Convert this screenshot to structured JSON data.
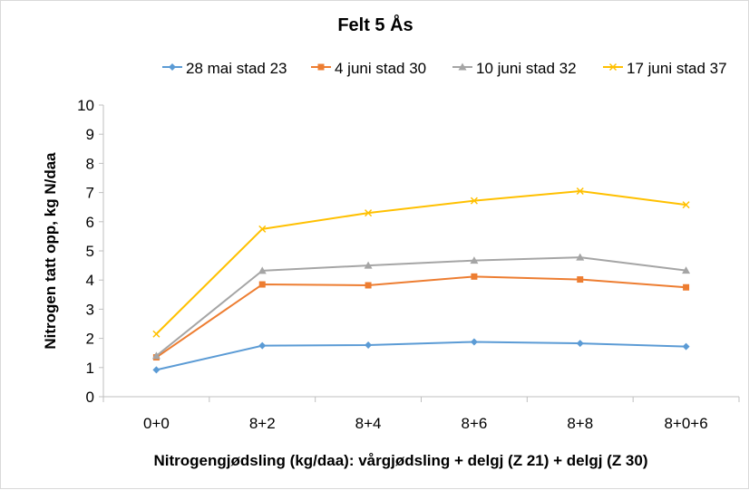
{
  "chart_data": {
    "type": "line",
    "title": "Felt 5 Ås",
    "xlabel": "Nitrogengjødsling (kg/daa): vårgjødsling + delgj (Z 21) + delgj (Z 30)",
    "ylabel": "Nitrogen tatt opp, kg N/daa",
    "categories": [
      "0+0",
      "8+2",
      "8+4",
      "8+6",
      "8+8",
      "8+0+6"
    ],
    "ylim": [
      0,
      10
    ],
    "yticks": [
      "0",
      "1",
      "2",
      "3",
      "4",
      "5",
      "6",
      "7",
      "8",
      "9",
      "10"
    ],
    "grid": false,
    "legend_position": "top",
    "series": [
      {
        "name": "28 mai stad 23",
        "color": "#5b9bd5",
        "marker": "diamond",
        "values": [
          0.92,
          1.75,
          1.77,
          1.88,
          1.83,
          1.72
        ]
      },
      {
        "name": "4 juni stad 30",
        "color": "#ed7d31",
        "marker": "square",
        "values": [
          1.35,
          3.85,
          3.82,
          4.12,
          4.02,
          3.75
        ]
      },
      {
        "name": "10 juni stad 32",
        "color": "#a5a5a5",
        "marker": "triangle",
        "values": [
          1.4,
          4.32,
          4.5,
          4.67,
          4.78,
          4.33
        ]
      },
      {
        "name": "17 juni stad 37",
        "color": "#ffc000",
        "marker": "cross",
        "values": [
          2.15,
          5.75,
          6.3,
          6.72,
          7.05,
          6.58
        ]
      }
    ]
  }
}
